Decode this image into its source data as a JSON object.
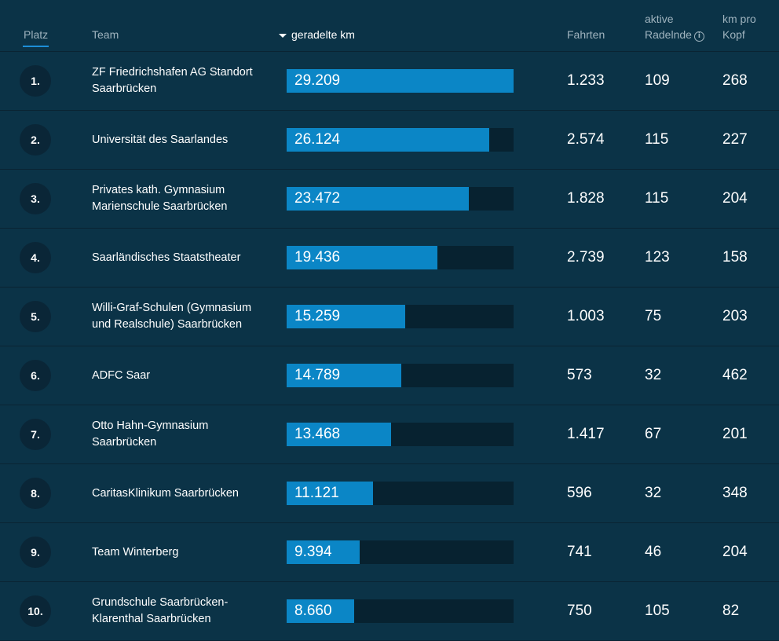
{
  "header": {
    "platz": "Platz",
    "team": "Team",
    "km": "geradelte km",
    "fahrten": "Fahrten",
    "aktive_line1": "aktive",
    "aktive_line2": "Radelnde",
    "kmpro_line1": "km pro",
    "kmpro_line2": "Kopf",
    "info_icon_glyph": "i"
  },
  "colors": {
    "background": "#0b3347",
    "bar_fill": "#0b86c6",
    "bar_track": "#072230",
    "active_tab_underline": "#1d8ed8"
  },
  "bar_max_km": 29209,
  "rows": [
    {
      "rank": "1.",
      "team_line1": "ZF Friedrichshafen AG Standort",
      "team_line2": "Saarbrücken",
      "km": "29.209",
      "km_value": 29209,
      "fahrten": "1.233",
      "aktive": "109",
      "kmpro": "268"
    },
    {
      "rank": "2.",
      "team_line1": "Universität des Saarlandes",
      "team_line2": "",
      "km": "26.124",
      "km_value": 26124,
      "fahrten": "2.574",
      "aktive": "115",
      "kmpro": "227"
    },
    {
      "rank": "3.",
      "team_line1": "Privates kath. Gymnasium",
      "team_line2": "Marienschule Saarbrücken",
      "km": "23.472",
      "km_value": 23472,
      "fahrten": "1.828",
      "aktive": "115",
      "kmpro": "204"
    },
    {
      "rank": "4.",
      "team_line1": "Saarländisches Staatstheater",
      "team_line2": "",
      "km": "19.436",
      "km_value": 19436,
      "fahrten": "2.739",
      "aktive": "123",
      "kmpro": "158"
    },
    {
      "rank": "5.",
      "team_line1": "Willi-Graf-Schulen (Gymnasium",
      "team_line2": "und Realschule) Saarbrücken",
      "km": "15.259",
      "km_value": 15259,
      "fahrten": "1.003",
      "aktive": "75",
      "kmpro": "203"
    },
    {
      "rank": "6.",
      "team_line1": "ADFC Saar",
      "team_line2": "",
      "km": "14.789",
      "km_value": 14789,
      "fahrten": "573",
      "aktive": "32",
      "kmpro": "462"
    },
    {
      "rank": "7.",
      "team_line1": "Otto Hahn-Gymnasium",
      "team_line2": "Saarbrücken",
      "km": "13.468",
      "km_value": 13468,
      "fahrten": "1.417",
      "aktive": "67",
      "kmpro": "201"
    },
    {
      "rank": "8.",
      "team_line1": "CaritasKlinikum Saarbrücken",
      "team_line2": "",
      "km": "11.121",
      "km_value": 11121,
      "fahrten": "596",
      "aktive": "32",
      "kmpro": "348"
    },
    {
      "rank": "9.",
      "team_line1": "Team Winterberg",
      "team_line2": "",
      "km": "9.394",
      "km_value": 9394,
      "fahrten": "741",
      "aktive": "46",
      "kmpro": "204"
    },
    {
      "rank": "10.",
      "team_line1": "Grundschule Saarbrücken-",
      "team_line2": "Klarenthal Saarbrücken",
      "km": "8.660",
      "km_value": 8660,
      "fahrten": "750",
      "aktive": "105",
      "kmpro": "82"
    }
  ]
}
